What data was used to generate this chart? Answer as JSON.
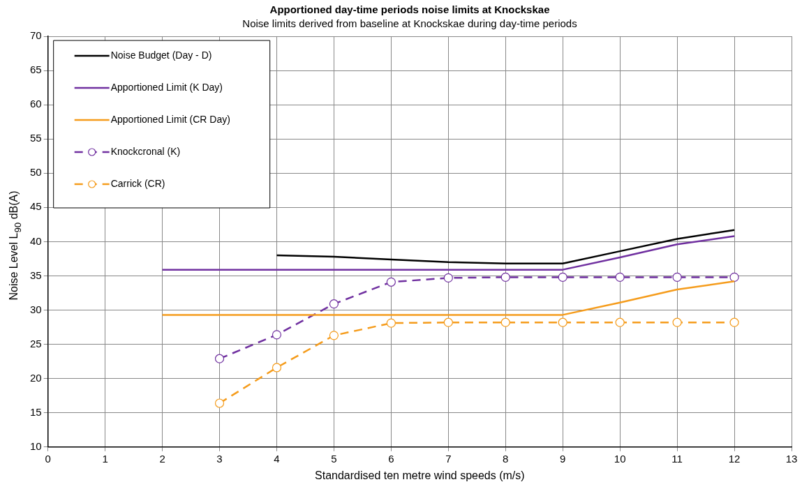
{
  "chart_data": {
    "type": "line",
    "title": "Apportioned day-time periods noise limits at Knockskae",
    "subtitle": "Noise limits derived from baseline at Knockskae during day-time periods",
    "xlabel": "Standardised ten metre wind speeds (m/s)",
    "ylabel": "Noise Level L$_{90}$ dB(A)",
    "xlim": [
      0,
      13
    ],
    "xticks": [
      0,
      1,
      2,
      3,
      4,
      5,
      6,
      7,
      8,
      9,
      10,
      11,
      12,
      13
    ],
    "ylim": [
      10,
      70
    ],
    "yticks": [
      10,
      15,
      20,
      25,
      30,
      35,
      40,
      45,
      50,
      55,
      60,
      65,
      70
    ],
    "grid": true,
    "legend": "top left",
    "series": [
      {
        "name": "Noise Budget (Day - D)",
        "color": "#000000",
        "marker": "none",
        "line_style": "solid",
        "x": [
          4,
          5,
          6,
          7,
          8,
          9,
          10,
          11,
          12
        ],
        "values": [
          38.0,
          37.8,
          37.4,
          37.0,
          36.8,
          36.8,
          38.6,
          40.4,
          41.7
        ]
      },
      {
        "name": "Apportioned Limit (K Day)",
        "color": "#7030a0",
        "marker": "none",
        "line_style": "solid",
        "x": [
          2,
          3,
          4,
          5,
          6,
          7,
          8,
          9,
          10,
          11,
          12
        ],
        "values": [
          35.9,
          35.9,
          35.9,
          35.9,
          35.9,
          35.9,
          35.9,
          35.9,
          37.7,
          39.6,
          40.8
        ]
      },
      {
        "name": "Apportioned Limit (CR Day)",
        "color": "#f59c1c",
        "marker": "none",
        "line_style": "solid",
        "x": [
          2,
          3,
          4,
          5,
          6,
          7,
          8,
          9,
          10,
          11,
          12
        ],
        "values": [
          29.3,
          29.3,
          29.3,
          29.3,
          29.3,
          29.3,
          29.3,
          29.3,
          31.1,
          33.0,
          34.2
        ]
      },
      {
        "name": "Knockcronal (K)",
        "color": "#7030a0",
        "marker": "circle",
        "line_style": "dashed",
        "x": [
          3,
          4,
          5,
          6,
          7,
          8,
          9,
          10,
          11,
          12
        ],
        "values": [
          22.9,
          26.4,
          30.9,
          34.1,
          34.7,
          34.8,
          34.8,
          34.8,
          34.8,
          34.8
        ]
      },
      {
        "name": "Carrick (CR)",
        "color": "#f59c1c",
        "marker": "circle",
        "line_style": "dashed",
        "x": [
          3,
          4,
          5,
          6,
          7,
          8,
          9,
          10,
          11,
          12
        ],
        "values": [
          16.4,
          21.6,
          26.3,
          28.1,
          28.2,
          28.2,
          28.2,
          28.2,
          28.2,
          28.2
        ]
      }
    ]
  }
}
